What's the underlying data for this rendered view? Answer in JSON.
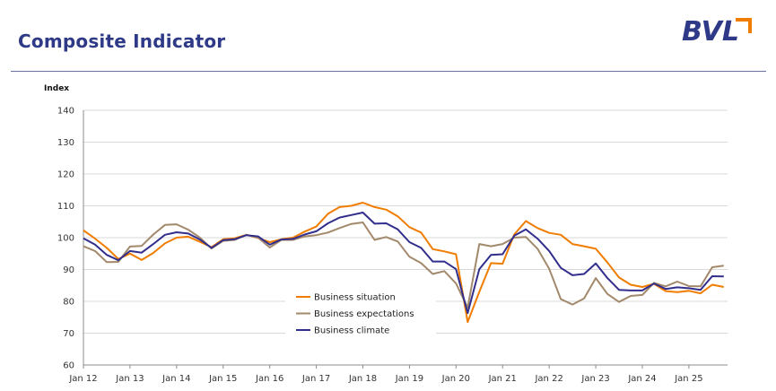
{
  "header": {
    "title": "Composite Indicator",
    "logo_text": "BVL",
    "logo_accent_color": "#f07d00"
  },
  "chart_data": {
    "type": "line",
    "ylabel": "Index",
    "ylim": [
      60,
      140
    ],
    "y_ticks": [
      60,
      70,
      80,
      90,
      100,
      110,
      120,
      130,
      140
    ],
    "x_range": [
      2012.0,
      2025.83
    ],
    "x_ticks": [
      {
        "label": "Jan 12",
        "x": 2012
      },
      {
        "label": "Jan 13",
        "x": 2013
      },
      {
        "label": "Jan 14",
        "x": 2014
      },
      {
        "label": "Jan 15",
        "x": 2015
      },
      {
        "label": "Jan 16",
        "x": 2016
      },
      {
        "label": "Jan 17",
        "x": 2017
      },
      {
        "label": "Jan 18",
        "x": 2018
      },
      {
        "label": "Jan 19",
        "x": 2019
      },
      {
        "label": "Jan 20",
        "x": 2020
      },
      {
        "label": "Jan 21",
        "x": 2021
      },
      {
        "label": "Jan 22",
        "x": 2022
      },
      {
        "label": "Jan 23",
        "x": 2023
      },
      {
        "label": "Jan 24",
        "x": 2024
      },
      {
        "label": "Jan 25",
        "x": 2025
      }
    ],
    "grid": true,
    "legend_position": "bottom-center",
    "series": [
      {
        "name": "Business situation",
        "color": "#f07d00",
        "x": [
          2012.0,
          2012.25,
          2012.5,
          2012.75,
          2013.0,
          2013.25,
          2013.5,
          2013.75,
          2014.0,
          2014.25,
          2014.5,
          2014.75,
          2015.0,
          2015.25,
          2015.5,
          2015.75,
          2016.0,
          2016.25,
          2016.5,
          2016.75,
          2017.0,
          2017.25,
          2017.5,
          2017.75,
          2018.0,
          2018.25,
          2018.5,
          2018.75,
          2019.0,
          2019.25,
          2019.5,
          2019.75,
          2020.0,
          2020.25,
          2020.5,
          2020.75,
          2021.0,
          2021.25,
          2021.5,
          2021.75,
          2022.0,
          2022.25,
          2022.5,
          2022.75,
          2023.0,
          2023.25,
          2023.5,
          2023.75,
          2024.0,
          2024.25,
          2024.5,
          2024.75,
          2025.0,
          2025.25,
          2025.5,
          2025.75
        ],
        "values": [
          102.3,
          99.7,
          96.8,
          93.3,
          95.0,
          93.0,
          95.2,
          98.2,
          100.0,
          100.3,
          98.7,
          97.0,
          99.5,
          99.8,
          100.9,
          99.9,
          98.6,
          99.5,
          100.0,
          101.9,
          103.5,
          107.5,
          109.6,
          110.0,
          111.0,
          109.6,
          108.8,
          106.7,
          103.3,
          101.6,
          96.4,
          95.7,
          94.8,
          73.5,
          83.0,
          92.0,
          91.8,
          101.0,
          105.2,
          103.0,
          101.5,
          100.9,
          98.0,
          97.3,
          96.5,
          92.2,
          87.5,
          85.2,
          84.5,
          85.5,
          83.2,
          82.9,
          83.3,
          82.5,
          85.2,
          84.5
        ]
      },
      {
        "name": "Business expectations",
        "color": "#a3896b",
        "x": [
          2012.0,
          2012.25,
          2012.5,
          2012.75,
          2013.0,
          2013.25,
          2013.5,
          2013.75,
          2014.0,
          2014.25,
          2014.5,
          2014.75,
          2015.0,
          2015.25,
          2015.5,
          2015.75,
          2016.0,
          2016.25,
          2016.5,
          2016.75,
          2017.0,
          2017.25,
          2017.5,
          2017.75,
          2018.0,
          2018.25,
          2018.5,
          2018.75,
          2019.0,
          2019.25,
          2019.5,
          2019.75,
          2020.0,
          2020.25,
          2020.5,
          2020.75,
          2021.0,
          2021.25,
          2021.5,
          2021.75,
          2022.0,
          2022.25,
          2022.5,
          2022.75,
          2023.0,
          2023.25,
          2023.5,
          2023.75,
          2024.0,
          2024.25,
          2024.5,
          2024.75,
          2025.0,
          2025.25,
          2025.5,
          2025.75
        ],
        "values": [
          97.3,
          95.8,
          92.3,
          92.4,
          97.2,
          97.4,
          101.0,
          104.0,
          104.2,
          102.5,
          100.0,
          96.6,
          99.0,
          99.3,
          100.9,
          100.0,
          96.9,
          99.3,
          99.3,
          100.4,
          100.8,
          101.6,
          103.0,
          104.3,
          104.8,
          99.3,
          100.2,
          98.8,
          94.0,
          92.0,
          88.6,
          89.5,
          85.6,
          78.0,
          98.0,
          97.3,
          98.0,
          100.0,
          100.2,
          96.5,
          90.2,
          80.7,
          79.0,
          80.9,
          87.3,
          82.3,
          79.8,
          81.7,
          82.0,
          85.8,
          84.7,
          86.2,
          84.8,
          84.7,
          90.7,
          91.2
        ]
      },
      {
        "name": "Business climate",
        "color": "#322e8c",
        "x": [
          2012.0,
          2012.25,
          2012.5,
          2012.75,
          2013.0,
          2013.25,
          2013.5,
          2013.75,
          2014.0,
          2014.25,
          2014.5,
          2014.75,
          2015.0,
          2015.25,
          2015.5,
          2015.75,
          2016.0,
          2016.25,
          2016.5,
          2016.75,
          2017.0,
          2017.25,
          2017.5,
          2017.75,
          2018.0,
          2018.25,
          2018.5,
          2018.75,
          2019.0,
          2019.25,
          2019.5,
          2019.75,
          2020.0,
          2020.25,
          2020.5,
          2020.75,
          2021.0,
          2021.25,
          2021.5,
          2021.75,
          2022.0,
          2022.25,
          2022.5,
          2022.75,
          2023.0,
          2023.25,
          2023.5,
          2023.75,
          2024.0,
          2024.25,
          2024.5,
          2024.75,
          2025.0,
          2025.25,
          2025.5,
          2025.75
        ],
        "values": [
          99.8,
          97.8,
          94.6,
          92.9,
          95.8,
          95.3,
          98.0,
          100.9,
          101.7,
          101.3,
          99.4,
          96.8,
          99.2,
          99.5,
          100.8,
          100.4,
          97.8,
          99.4,
          99.6,
          101.0,
          102.0,
          104.5,
          106.3,
          107.1,
          107.9,
          104.4,
          104.5,
          102.6,
          98.6,
          96.8,
          92.5,
          92.5,
          90.1,
          76.3,
          90.1,
          94.6,
          94.8,
          100.6,
          102.6,
          99.7,
          95.8,
          90.5,
          88.2,
          88.6,
          91.9,
          87.3,
          83.6,
          83.4,
          83.4,
          85.6,
          83.9,
          84.4,
          84.1,
          83.6,
          87.9,
          87.8
        ]
      }
    ]
  }
}
